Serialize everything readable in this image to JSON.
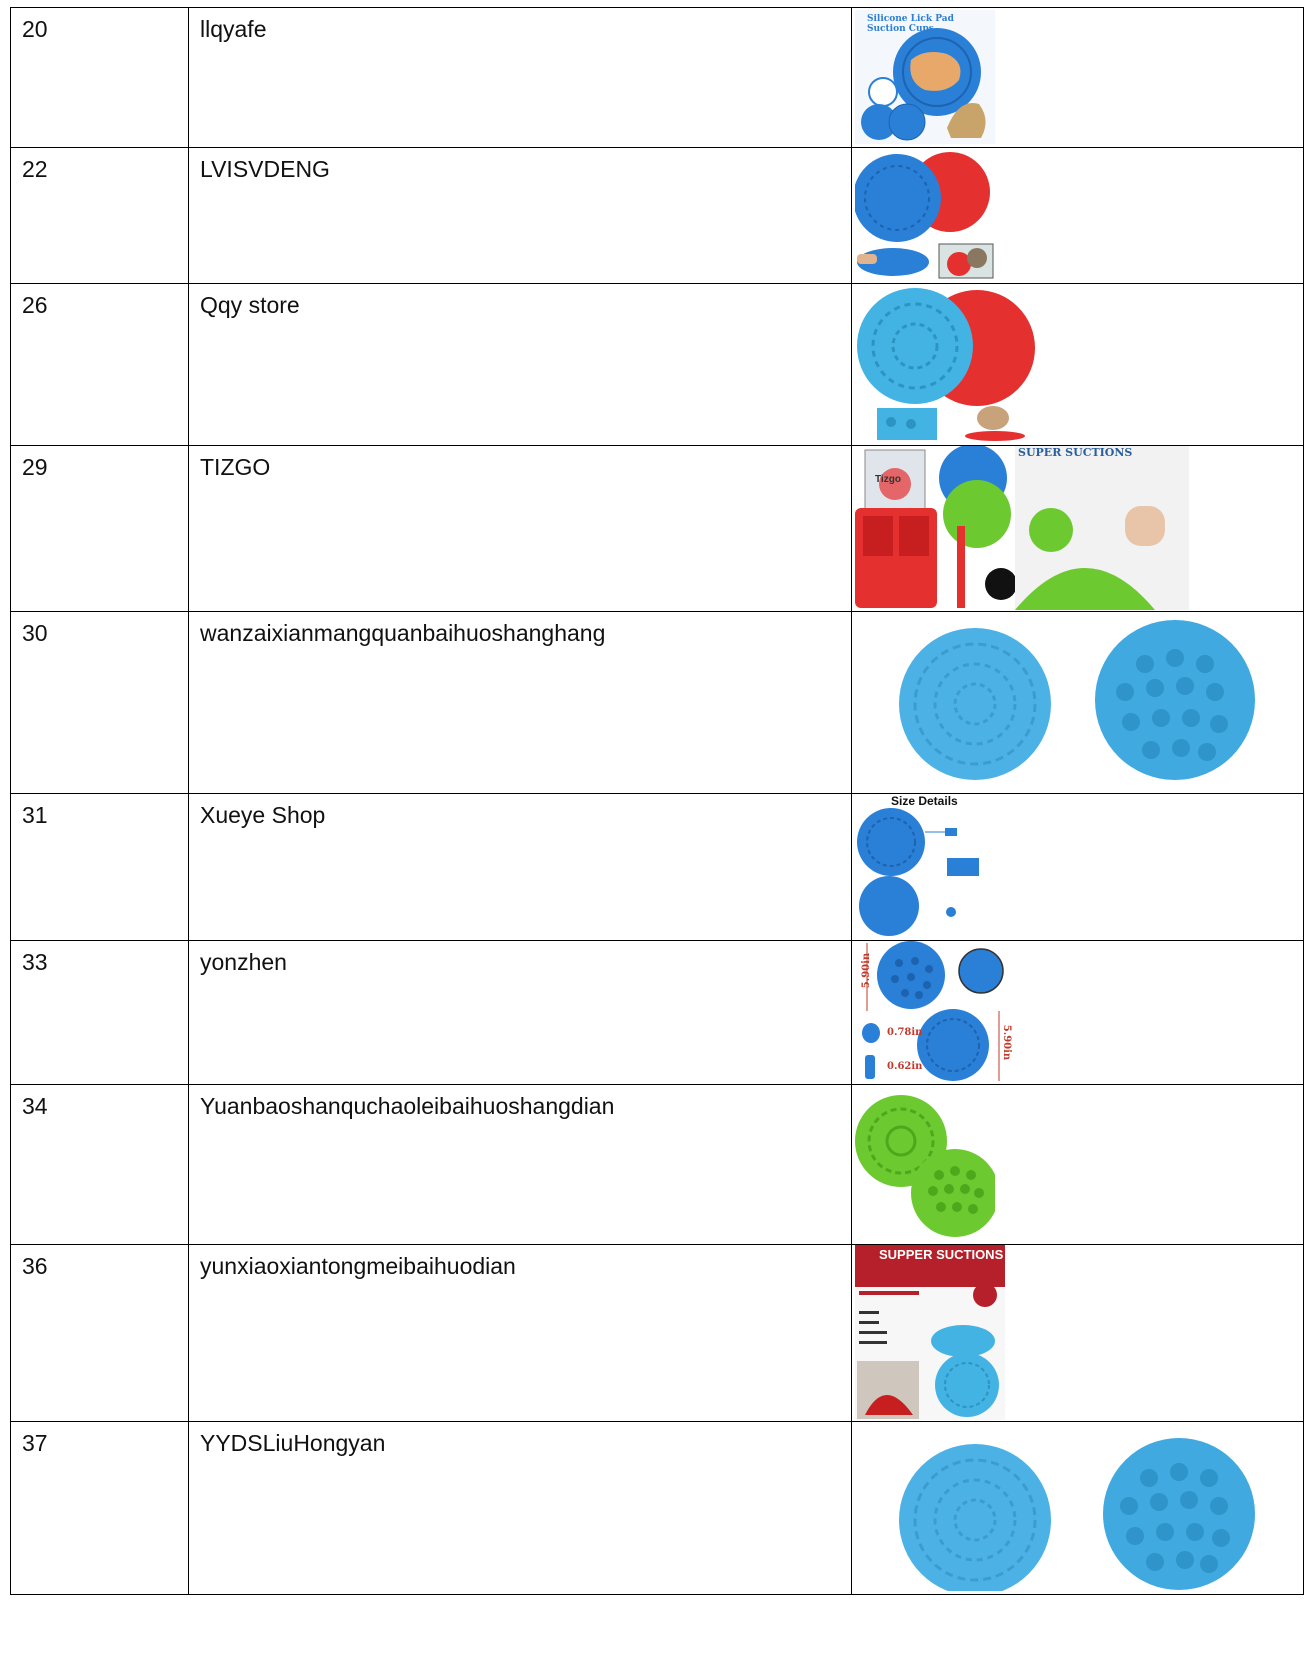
{
  "table": {
    "rows": [
      {
        "num": "20",
        "store": "llqyafe",
        "image": "lick-pad-blue-orange-dog-icon",
        "image_text": [
          "Silicone Lick Pad Suction Cups"
        ]
      },
      {
        "num": "22",
        "store": "LVISVDENG",
        "image": "lick-pad-blue-red-pair-icon",
        "image_text": []
      },
      {
        "num": "26",
        "store": "Qqy store",
        "image": "lick-pad-cyan-red-cat-icon",
        "image_text": []
      },
      {
        "num": "29",
        "store": "TIZGO",
        "image": "lick-pad-tizgo-set-icon",
        "image_text": [
          "SUPER SUCTIONS",
          "Tizgo"
        ]
      },
      {
        "num": "30",
        "store": "wanzaixianmangquanbaihuoshanghang",
        "image": "lick-pad-blue-front-back-icon",
        "image_text": []
      },
      {
        "num": "31",
        "store": "Xueye Shop",
        "image": "lick-pad-size-details-icon",
        "image_text": [
          "Size Details"
        ]
      },
      {
        "num": "33",
        "store": "yonzhen",
        "image": "lick-pad-dimensions-icon",
        "image_text": [
          "5.90in",
          "0.78in",
          "0.62in",
          "5.90in"
        ]
      },
      {
        "num": "34",
        "store": "Yuanbaoshanquchaoleibaihuoshangdian",
        "image": "lick-pad-green-pair-icon",
        "image_text": []
      },
      {
        "num": "36",
        "store": "yunxiaoxiantongmeibaihuodian",
        "image": "lick-pad-supper-suctions-icon",
        "image_text": [
          "SUPPER SUCTIONS"
        ]
      },
      {
        "num": "37",
        "store": "YYDSLiuHongyan",
        "image": "lick-pad-blue-front-back-icon",
        "image_text": []
      }
    ]
  },
  "colors": {
    "blue": "#2a7fd6",
    "cyan": "#43b3e3",
    "red": "#e53030",
    "green": "#6cc930",
    "orange": "#e8a86a",
    "banner_red": "#b5202a"
  }
}
